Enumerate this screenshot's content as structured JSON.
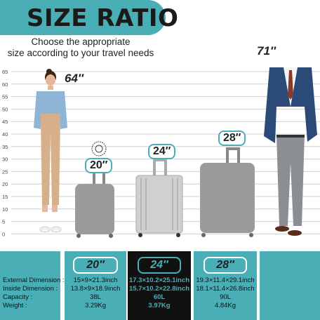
{
  "header": {
    "title": "SIZE RATIO",
    "subtitle_line1": "Choose the appropriate",
    "subtitle_line2": "size according to your travel needs"
  },
  "colors": {
    "accent": "#4aaeb6",
    "luggage_gray": "#9b9b9b",
    "luggage_silver": "#cfd0d0",
    "dark": "#111111"
  },
  "scale": {
    "ticks": [
      "65",
      "60",
      "55",
      "50",
      "45",
      "40",
      "35",
      "30",
      "25",
      "20",
      "15",
      "10",
      "5",
      "0"
    ]
  },
  "figures": {
    "woman_height": "64″",
    "man_height": "71″",
    "suitcases": [
      {
        "label": "20″",
        "height": 20
      },
      {
        "label": "24″",
        "height": 24
      },
      {
        "label": "28″",
        "height": 28
      }
    ]
  },
  "specs": {
    "row_labels": [
      "External Dimension :",
      "Inside Dimension :",
      "Capacity :",
      "Weight :"
    ],
    "columns": [
      {
        "size": "20″",
        "external": "15×9×21.3inch",
        "inside": "13.8×9×18.9inch",
        "capacity": "38L",
        "weight": "3.29Kg"
      },
      {
        "size": "24″",
        "external": "17.3×10.2×25.1inch",
        "inside": "15.7×10.2×22.8inch",
        "capacity": "60L",
        "weight": "3.97Kg"
      },
      {
        "size": "28″",
        "external": "19.3×11.4×29.1inch",
        "inside": "18.1×11.4×26.8inch",
        "capacity": "90L",
        "weight": "4.84Kg"
      }
    ]
  }
}
